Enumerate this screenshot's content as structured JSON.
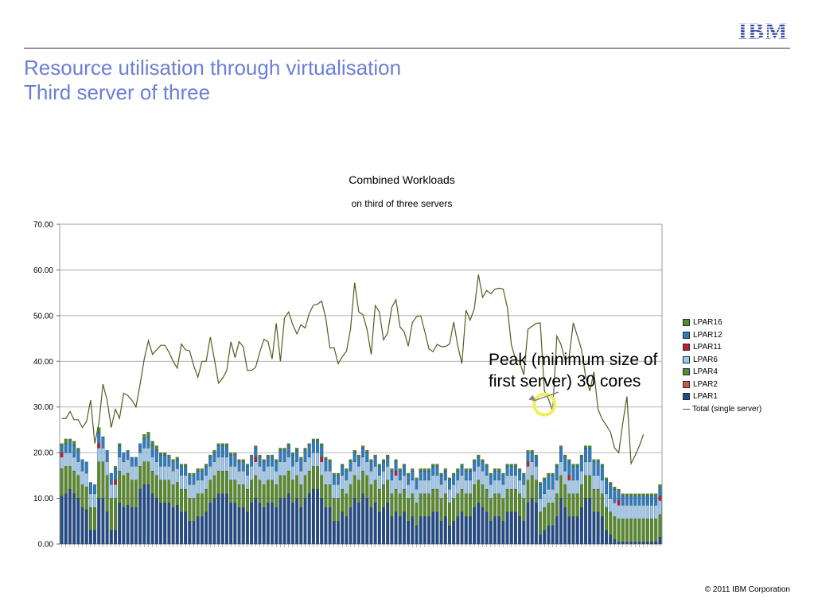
{
  "slide": {
    "title_line1": "Resource utilisation through virtualisation",
    "title_line2": "Third server of three",
    "logo_text": "IBM",
    "footer": "© 2011 IBM Corporation",
    "annotation_line1": "Peak (minimum size of",
    "annotation_line2": "first server) 30 cores",
    "title_color": "#6b7fd7"
  },
  "chart_data": {
    "type": "bar",
    "title": "Combined Workloads",
    "subtitle": "on third of three servers",
    "ylim": [
      0,
      70
    ],
    "yticks": [
      "0.00",
      "10.00",
      "20.00",
      "30.00",
      "40.00",
      "50.00",
      "60.00",
      "70.00"
    ],
    "grid": true,
    "stacked": true,
    "legend_position": "right",
    "series": [
      {
        "name": "LPAR1",
        "color": "#254b86",
        "values": [
          10.5,
          11,
          12,
          11,
          10,
          8,
          7.5,
          3,
          3,
          10,
          10,
          7,
          3,
          3,
          9,
          8,
          8.5,
          8,
          8,
          12,
          13,
          13,
          11,
          10,
          9,
          9,
          9,
          8,
          8.5,
          7,
          7,
          5,
          5,
          6,
          6,
          7,
          9,
          10,
          11,
          11,
          11,
          9,
          9,
          8,
          8,
          7,
          9,
          10,
          9,
          8,
          9,
          9,
          8,
          10,
          10,
          11,
          9,
          10,
          8,
          10,
          11,
          12,
          12,
          10,
          8,
          8,
          5,
          5,
          7,
          6,
          8,
          10,
          9,
          11,
          10,
          8,
          9,
          7,
          8,
          9,
          6,
          7,
          6,
          7,
          5,
          6,
          4,
          6,
          6,
          6,
          7,
          7,
          5,
          6,
          4,
          5,
          6,
          7,
          6,
          6,
          8,
          9,
          8,
          7,
          5,
          6,
          6,
          5,
          7,
          7,
          7,
          6,
          5,
          9,
          10,
          9,
          2,
          3,
          4,
          4,
          6,
          10,
          8,
          6,
          6,
          6,
          8,
          10,
          10,
          7,
          7,
          6,
          3,
          2,
          1,
          0.5,
          0.5,
          0.5,
          0.5,
          0.5,
          0.5,
          0.5,
          0.5,
          0.5,
          0.5,
          1.5
        ]
      },
      {
        "name": "LPAR2",
        "color": "#d5543c",
        "values": [
          0,
          0,
          0,
          0,
          0,
          0,
          0,
          0,
          0,
          0,
          0,
          0,
          0,
          0,
          0,
          0,
          0,
          0,
          0,
          0,
          0,
          0,
          0,
          0,
          0,
          0,
          0,
          0,
          0,
          0,
          0,
          0,
          0,
          0,
          0,
          0,
          0,
          0,
          0,
          0,
          0,
          0,
          0,
          0,
          0,
          0,
          0,
          0,
          0,
          0,
          0,
          0,
          0,
          0,
          0,
          0,
          0,
          0,
          0,
          0,
          0,
          0,
          0,
          0,
          0,
          0,
          0,
          0,
          0,
          0,
          0,
          0,
          0,
          0,
          0,
          0,
          0,
          0,
          0,
          0,
          0,
          0,
          0,
          0,
          0,
          0,
          0,
          0,
          0,
          0,
          0,
          0,
          0,
          0,
          0,
          0,
          0,
          0,
          0,
          0,
          0,
          0,
          0,
          0,
          0,
          0,
          0,
          0,
          0,
          0,
          0,
          0,
          0,
          0,
          0,
          0,
          0,
          0,
          0,
          0,
          0,
          0,
          0,
          0,
          0,
          0,
          0,
          0,
          0,
          0,
          0,
          0,
          0,
          0,
          0,
          0,
          0,
          0,
          0,
          0,
          0,
          0,
          0,
          0,
          0,
          0
        ]
      },
      {
        "name": "LPAR4",
        "color": "#5a8a2a",
        "values": [
          6,
          6,
          5,
          5,
          5,
          5,
          5,
          5,
          5,
          8,
          8,
          8,
          7,
          7,
          7,
          7,
          7,
          6,
          6,
          5,
          5,
          5,
          5,
          5,
          5,
          5,
          5,
          5,
          5,
          5,
          5,
          5,
          5,
          5,
          5,
          5,
          5,
          5,
          5,
          5,
          5,
          5,
          5,
          5,
          5,
          5,
          5,
          5,
          5,
          5,
          5,
          5,
          5,
          5,
          5,
          5,
          5,
          5,
          5,
          5,
          5,
          5,
          5,
          5,
          5,
          5,
          5,
          5,
          5,
          5,
          5,
          5,
          5,
          5,
          5,
          5,
          5,
          5,
          5,
          5,
          5,
          5,
          5,
          5,
          5,
          5,
          5,
          5,
          5,
          5,
          5,
          5,
          5,
          5,
          5,
          5,
          5,
          5,
          5,
          5,
          5,
          5,
          5,
          5,
          5,
          5,
          5,
          5,
          5,
          5,
          5,
          5,
          5,
          5,
          5,
          5,
          5,
          5,
          5,
          5,
          5,
          5,
          5,
          5,
          5,
          5,
          5,
          5,
          5,
          5,
          5,
          5,
          5,
          5,
          5,
          5,
          5,
          5,
          5,
          5,
          5,
          5,
          5,
          5,
          5,
          5
        ]
      },
      {
        "name": "LPAR6",
        "color": "#9ec9ec",
        "values": [
          2.5,
          3,
          3,
          3,
          3,
          3,
          3,
          3,
          3,
          3,
          3,
          3,
          3,
          3,
          3,
          3,
          3,
          3,
          3,
          3,
          3,
          3,
          3,
          3,
          3,
          3,
          3,
          3,
          3,
          3,
          3,
          3,
          3,
          3,
          3,
          3,
          3,
          3,
          3,
          3,
          3,
          3,
          3,
          3,
          3,
          3,
          3,
          3,
          3,
          3,
          3,
          3,
          3,
          3,
          3,
          3,
          3,
          3,
          3,
          3,
          3,
          3,
          3,
          3,
          3,
          3,
          3,
          3,
          3,
          3,
          3,
          3,
          3,
          3,
          3,
          3,
          3,
          3,
          3,
          3,
          3,
          3,
          3,
          3,
          3,
          3,
          3,
          3,
          3,
          3,
          3,
          3,
          3,
          3,
          3,
          3,
          3,
          3,
          3,
          3,
          3,
          3,
          3,
          3,
          3,
          3,
          3,
          3,
          3,
          3,
          3,
          3,
          3,
          3,
          3,
          3,
          3,
          3,
          3,
          3,
          3,
          3,
          3,
          3,
          3,
          3,
          3,
          3,
          3,
          3,
          3,
          3,
          3,
          3,
          3,
          3,
          3,
          3,
          3,
          3,
          3,
          3,
          3,
          3,
          3,
          3
        ]
      },
      {
        "name": "LPAR11",
        "color": "#c0202a",
        "values": [
          1,
          0,
          0,
          0,
          0,
          0,
          0,
          0,
          0,
          1,
          0,
          0,
          0,
          1,
          0,
          0,
          0,
          0,
          0,
          0,
          0,
          0,
          0,
          0,
          0,
          0,
          0,
          0,
          0,
          0,
          0,
          0,
          0,
          0,
          0,
          0,
          0,
          0,
          0,
          0,
          0,
          0,
          0,
          0,
          0,
          0,
          0,
          1,
          0,
          0,
          0,
          0,
          0,
          0,
          0,
          0,
          0,
          0,
          0,
          0,
          0,
          0,
          0,
          1,
          0,
          0,
          0,
          0,
          0,
          0,
          0,
          0,
          0,
          0,
          0,
          0,
          0,
          0,
          0,
          0,
          0,
          1,
          0,
          0,
          0,
          0,
          0,
          0,
          0,
          0,
          0,
          0,
          0,
          0,
          0,
          0,
          0,
          0,
          0,
          0,
          0,
          0,
          0,
          0,
          0,
          0,
          0,
          0,
          0,
          0,
          0,
          0,
          0,
          1,
          0,
          0,
          0,
          0,
          0,
          0,
          0,
          0,
          0,
          1,
          0,
          0,
          0,
          0,
          0,
          0,
          0,
          0,
          0,
          0,
          0,
          1,
          0,
          0,
          0,
          0,
          0,
          0,
          0,
          0,
          0,
          1
        ]
      },
      {
        "name": "LPAR12",
        "color": "#2f7bbd",
        "values": [
          1.5,
          2,
          2.5,
          2.5,
          2.5,
          2.5,
          2.5,
          2.5,
          2,
          2.5,
          2.5,
          2.5,
          2.5,
          2.5,
          2.5,
          2,
          2,
          2,
          2,
          2,
          2,
          2.5,
          2.5,
          2.5,
          2.5,
          2.5,
          2,
          2,
          2,
          2,
          2,
          2,
          2,
          2,
          2,
          2,
          2,
          2,
          2.5,
          2.5,
          2.5,
          2.5,
          2.5,
          2,
          2,
          2,
          2,
          2,
          2,
          2,
          2,
          2,
          2,
          2.5,
          2.5,
          2.5,
          2.5,
          2.5,
          2.5,
          2.5,
          2.5,
          2.5,
          2.5,
          2.5,
          2.5,
          2,
          2,
          2,
          2,
          2,
          2,
          2,
          2,
          2,
          2,
          2,
          2,
          2,
          2,
          2,
          2,
          2,
          2,
          2,
          2,
          2,
          2,
          2,
          2,
          2,
          2,
          2,
          2,
          2,
          2,
          2,
          2,
          2,
          2,
          2,
          2,
          2,
          2,
          2,
          2,
          2,
          2,
          2,
          2,
          2,
          2,
          2,
          2,
          2,
          2,
          2,
          3,
          3,
          3,
          3,
          3,
          3,
          3,
          3,
          3,
          3,
          3,
          3,
          3,
          3,
          3,
          3,
          3,
          3,
          3,
          2,
          2,
          2,
          2,
          2,
          2,
          2,
          2,
          2,
          2,
          2
        ]
      },
      {
        "name": "LPAR16",
        "color": "#4f8b2a",
        "values": [
          0.5,
          1,
          0.5,
          1,
          0.5,
          0,
          0,
          0,
          0,
          1,
          0,
          0,
          0,
          0.5,
          0.5,
          0,
          0,
          0,
          0,
          0,
          1,
          1,
          1,
          1,
          0.5,
          0.5,
          0.5,
          0.5,
          0.5,
          0.5,
          0.5,
          0.5,
          0.5,
          0.5,
          0.5,
          0.5,
          0.5,
          0.5,
          0.5,
          0.5,
          0.5,
          0.5,
          0.5,
          0.5,
          0.5,
          0.5,
          0.5,
          0.5,
          0.5,
          0.5,
          0.5,
          0.5,
          0.5,
          0.5,
          0.5,
          0.5,
          0.5,
          0.5,
          0.5,
          0.5,
          0.5,
          0.5,
          0.5,
          0.5,
          0.5,
          0.5,
          0.5,
          0.5,
          0.5,
          0.5,
          0.5,
          0.5,
          0.5,
          0.5,
          0.5,
          0.5,
          0.5,
          0.5,
          0.5,
          0.5,
          0.5,
          0.5,
          0.5,
          0.5,
          0.5,
          0.5,
          0.5,
          0.5,
          0.5,
          0.5,
          0.5,
          0.5,
          0.5,
          0.5,
          0.5,
          0.5,
          0.5,
          0.5,
          0.5,
          0.5,
          0.5,
          0.5,
          0.5,
          0.5,
          0.5,
          0.5,
          0.5,
          0.5,
          0.5,
          0.5,
          0.5,
          0.5,
          0.5,
          0.5,
          0.5,
          0.5,
          0.5,
          0.5,
          0.5,
          0.5,
          0.5,
          0.5,
          0.5,
          0.5,
          0.5,
          0.5,
          0.5,
          0.5,
          0.5,
          0.5,
          0.5,
          0.5,
          0.5,
          0.5,
          0.5,
          0.5,
          0.5,
          0.5,
          0.5,
          0.5,
          0.5,
          0.5,
          0.5,
          0.5,
          0.5,
          0.5
        ]
      },
      {
        "name": "Total (single server)",
        "color": "#4f5f1f",
        "kind": "line",
        "values": [
          27.5,
          27.5,
          29,
          27.2,
          27.2,
          25.5,
          26.8,
          31.5,
          22,
          26.5,
          35,
          31.5,
          25.5,
          29.5,
          27.5,
          33,
          32.5,
          31.5,
          30,
          35,
          40.5,
          44.5,
          41.5,
          42.5,
          43.5,
          43.5,
          42,
          40,
          38.5,
          43.8,
          42.5,
          42.3,
          39,
          36.5,
          40,
          40,
          45.3,
          40.5,
          35.2,
          36.3,
          38,
          44.3,
          40.8,
          44.3,
          43.2,
          38,
          38,
          38.7,
          42,
          44.8,
          44.3,
          40.5,
          48.3,
          40,
          49.5,
          50.8,
          48,
          46,
          48,
          47.3,
          50.5,
          52.3,
          52.5,
          53.2,
          49.5,
          42.9,
          43,
          39.5,
          41,
          42.2,
          47,
          57.2,
          50.8,
          50.2,
          47,
          41.5,
          52.2,
          50.8,
          44.7,
          46.2,
          51.8,
          53.5,
          47.5,
          46.5,
          43.3,
          48.5,
          49.8,
          50,
          46.5,
          42.7,
          42.1,
          43.7,
          43.2,
          43.2,
          43.8,
          48.6,
          43.4,
          39.5,
          51.2,
          49,
          51.5,
          59,
          54,
          55.5,
          54.8,
          55.8,
          56,
          55.8,
          51.8,
          43.5,
          40.5,
          40,
          37,
          47,
          47.7,
          48.3,
          48.4,
          33.5,
          31.7,
          29,
          45.5,
          43.7,
          40.3,
          41,
          48.4,
          45.5,
          42.5,
          36.5,
          33.5,
          37.7,
          29.5,
          27.3,
          26,
          24.5,
          21,
          20,
          26.5,
          32.3,
          17.6,
          19.4,
          21.5,
          24
        ]
      }
    ],
    "annotation": {
      "text": "Peak (minimum size of first server) 30 cores",
      "target_index": 117,
      "target_value": 29.5
    },
    "annotation_marker_color": "#f0ef5a"
  }
}
